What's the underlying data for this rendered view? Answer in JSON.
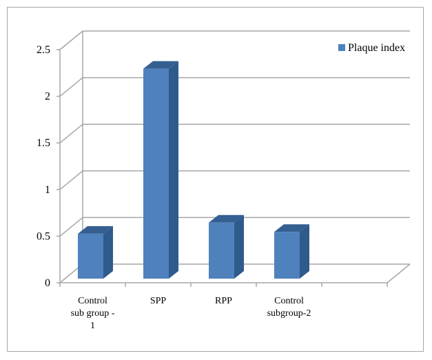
{
  "chart_data": {
    "type": "bar",
    "categories": [
      "Control sub group - 1",
      "SPP",
      "RPP",
      "Control subgroup-2"
    ],
    "category_lines": [
      [
        "Control",
        "sub group -",
        "1"
      ],
      [
        "SPP"
      ],
      [
        "RPP"
      ],
      [
        "Control",
        "subgroup-2"
      ]
    ],
    "series": [
      {
        "name": "Plaque index",
        "values": [
          0.57,
          2.34,
          0.69,
          0.59
        ]
      }
    ],
    "yticks": [
      "0",
      "0.5",
      "1",
      "1.5",
      "2",
      "2.5"
    ],
    "ylim": [
      0,
      2.5
    ],
    "grid": true,
    "legend_position": "top-right",
    "colors": {
      "bar_front": "#4f81bd",
      "bar_side": "#2f5a8c",
      "bar_top": "#355f91",
      "grid": "#a6a6a6"
    }
  }
}
